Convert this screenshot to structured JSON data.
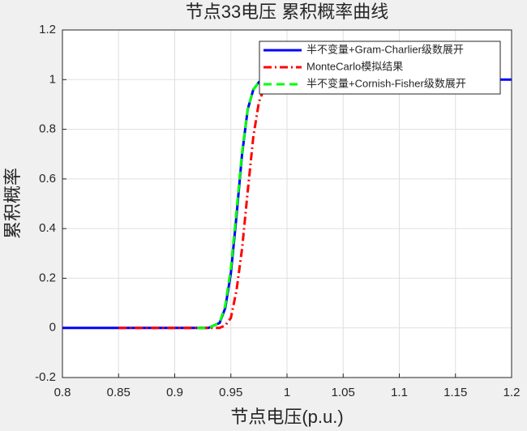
{
  "chart_data": {
    "type": "line",
    "title": "节点33电压 累积概率曲线",
    "x_label": "节点电压(p.u.)",
    "y_label": "累积概率",
    "x": [
      0.8,
      0.85,
      0.92,
      0.93,
      0.94,
      0.945,
      0.95,
      0.955,
      0.96,
      0.965,
      0.97,
      0.975,
      0.98,
      0.985,
      0.99,
      1.2
    ],
    "series": [
      {
        "name": "半不变量+Gram-Charlier级数展开",
        "color": "#0000ff",
        "dash": "solid",
        "values": [
          0,
          0,
          0,
          0,
          0.02,
          0.08,
          0.22,
          0.45,
          0.7,
          0.88,
          0.96,
          0.99,
          1,
          1,
          1,
          1
        ]
      },
      {
        "name": "MonteCarlo模拟结果",
        "color": "#ff0000",
        "dash": "dashdot",
        "values": [
          null,
          0,
          0,
          0,
          0,
          0.01,
          0.04,
          0.15,
          0.32,
          0.55,
          0.77,
          0.91,
          0.97,
          0.99,
          1,
          null
        ]
      },
      {
        "name": "半不变量+Cornish-Fisher级数展开",
        "color": "#00ff00",
        "dash": "dashed",
        "values": [
          null,
          null,
          0,
          0,
          0.02,
          0.09,
          0.24,
          0.47,
          0.71,
          0.88,
          0.96,
          0.99,
          1,
          1,
          1,
          null
        ]
      }
    ],
    "xlim": [
      0.8,
      1.2
    ],
    "xticks": [
      0.8,
      0.85,
      0.9,
      0.95,
      1,
      1.05,
      1.1,
      1.15,
      1.2
    ],
    "ylim": [
      -0.2,
      1.2
    ],
    "yticks": [
      -0.2,
      0,
      0.2,
      0.4,
      0.6,
      0.8,
      1,
      1.2
    ],
    "grid": true,
    "legend": "top-right"
  }
}
